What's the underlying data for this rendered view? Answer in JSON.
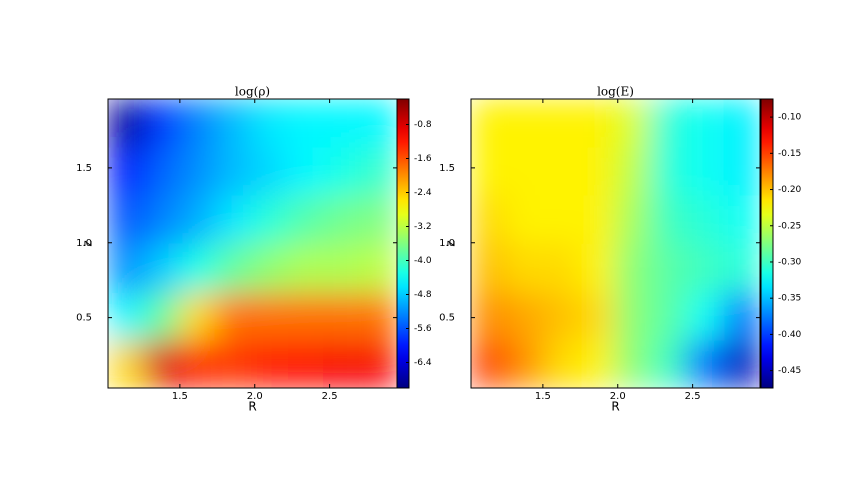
{
  "chart_data": [
    {
      "type": "heatmap",
      "title": "log(ρ)",
      "xlabel": "R",
      "ylabel": "z",
      "xlim": [
        1.02,
        2.95
      ],
      "ylim": [
        0.03,
        1.96
      ],
      "xticks": [
        1.5,
        {
          "value": 2.0,
          "label": "2.0"
        },
        2.5
      ],
      "yticks": [
        0.5,
        {
          "value": 1.0,
          "label": "1.0"
        },
        1.5
      ],
      "x": [
        1.14,
        1.38,
        1.62,
        1.86,
        2.1,
        2.34,
        2.58,
        2.83
      ],
      "y": [
        0.19,
        0.51,
        0.83,
        1.16,
        1.48,
        1.8
      ],
      "values": [
        [
          -2.5,
          -0.8,
          -1.3,
          -1.4,
          -1.2,
          -1.1,
          -1.0,
          -1.0
        ],
        [
          -4.5,
          -3.8,
          -2.5,
          -1.8,
          -1.8,
          -1.8,
          -1.8,
          -1.8
        ],
        [
          -5.2,
          -4.8,
          -4.3,
          -3.8,
          -3.5,
          -3.3,
          -3.3,
          -3.2
        ],
        [
          -5.6,
          -5.3,
          -5.0,
          -4.6,
          -4.2,
          -3.9,
          -3.7,
          -3.6
        ],
        [
          -6.0,
          -5.5,
          -5.2,
          -4.9,
          -4.7,
          -4.5,
          -4.3,
          -4.1
        ],
        [
          -6.8,
          -5.8,
          -5.3,
          -4.9,
          -4.6,
          -4.5,
          -4.5,
          -4.5
        ]
      ],
      "colormap": "jet",
      "clim": [
        -7.0,
        -0.2
      ],
      "cticks": [
        -0.8,
        -1.6,
        -2.4,
        -3.2,
        {
          "value": -4.0,
          "label": "-4.0"
        },
        -4.8,
        -5.6,
        -6.4
      ]
    },
    {
      "type": "heatmap",
      "title": "log(E)",
      "xlabel": "R",
      "ylabel": "z",
      "xlim": [
        1.02,
        2.95
      ],
      "ylim": [
        0.03,
        1.96
      ],
      "xticks": [
        1.5,
        {
          "value": 2.0,
          "label": "2.0"
        },
        2.5
      ],
      "yticks": [
        0.5,
        {
          "value": 1.0,
          "label": "1.0"
        },
        1.5
      ],
      "x": [
        1.14,
        1.38,
        1.62,
        1.86,
        2.1,
        2.34,
        2.58,
        2.83
      ],
      "y": [
        0.19,
        0.51,
        0.83,
        1.16,
        1.48,
        1.8
      ],
      "values": [
        [
          -0.15,
          -0.18,
          -0.21,
          -0.22,
          -0.27,
          -0.3,
          -0.38,
          -0.45
        ],
        [
          -0.18,
          -0.19,
          -0.2,
          -0.21,
          -0.27,
          -0.29,
          -0.32,
          -0.38
        ],
        [
          -0.2,
          -0.21,
          -0.21,
          -0.22,
          -0.27,
          -0.29,
          -0.3,
          -0.31
        ],
        [
          -0.21,
          -0.22,
          -0.22,
          -0.22,
          -0.26,
          -0.3,
          -0.31,
          -0.32
        ],
        [
          -0.22,
          -0.22,
          -0.22,
          -0.22,
          -0.25,
          -0.31,
          -0.32,
          -0.33
        ],
        [
          -0.22,
          -0.22,
          -0.22,
          -0.22,
          -0.24,
          -0.31,
          -0.32,
          -0.33
        ]
      ],
      "colormap": "jet",
      "clim": [
        -0.474,
        -0.075
      ],
      "cticks": [
        {
          "value": -0.1,
          "label": "-0.10"
        },
        -0.15,
        {
          "value": -0.2,
          "label": "-0.20"
        },
        -0.25,
        {
          "value": -0.3,
          "label": "-0.30"
        },
        -0.35,
        {
          "value": -0.4,
          "label": "-0.40"
        },
        -0.45
      ]
    }
  ]
}
